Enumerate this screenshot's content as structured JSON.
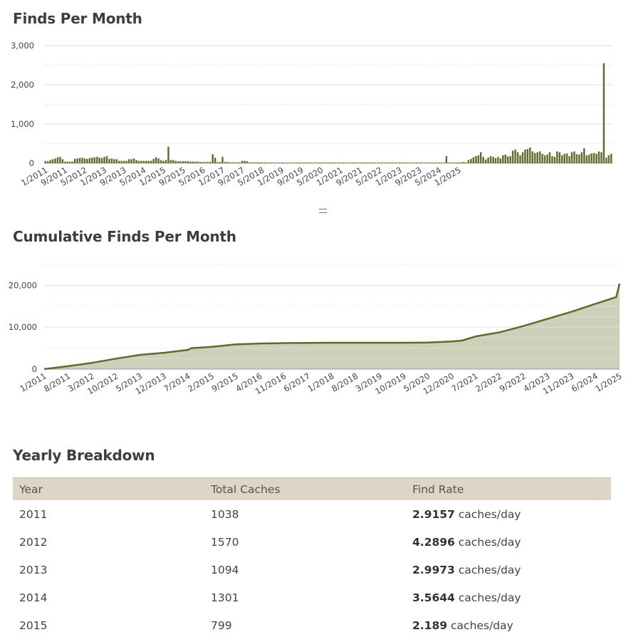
{
  "section_titles": {
    "finds_per_month": "Finds Per Month",
    "cumulative": "Cumulative Finds Per Month",
    "yearly": "Yearly Breakdown"
  },
  "colors": {
    "bar": "#5c6b2a",
    "line": "#5c6b2a",
    "area": "#c9ccb2",
    "grid": "#dddddd",
    "table_header": "#ddd6c7"
  },
  "chart_data": [
    {
      "type": "bar",
      "title": "Finds Per Month",
      "ylim": [
        0,
        3000
      ],
      "yticks": [
        "0",
        "1,000",
        "2,000",
        "3,000"
      ],
      "xticks": [
        "1/2011",
        "9/2011",
        "5/2012",
        "1/2013",
        "9/2013",
        "5/2014",
        "1/2015",
        "9/2015",
        "5/2016",
        "1/2017",
        "9/2017",
        "5/2018",
        "1/2019",
        "9/2019",
        "5/2020",
        "1/2021",
        "9/2021",
        "5/2022",
        "1/2023",
        "9/2023",
        "5/2024",
        "1/2025"
      ],
      "x_start": "1/2011",
      "values": [
        50,
        50,
        80,
        100,
        120,
        150,
        160,
        100,
        40,
        40,
        40,
        40,
        110,
        120,
        130,
        140,
        120,
        110,
        130,
        140,
        150,
        160,
        140,
        130,
        160,
        180,
        110,
        120,
        100,
        100,
        60,
        60,
        60,
        60,
        100,
        100,
        120,
        80,
        60,
        60,
        60,
        60,
        60,
        60,
        110,
        150,
        120,
        80,
        60,
        80,
        420,
        80,
        80,
        60,
        50,
        50,
        50,
        50,
        50,
        40,
        40,
        40,
        40,
        30,
        30,
        30,
        30,
        30,
        230,
        140,
        30,
        30,
        160,
        30,
        30,
        20,
        20,
        20,
        20,
        20,
        60,
        60,
        50,
        20,
        20,
        20,
        20,
        20,
        20,
        20,
        15,
        15,
        15,
        15,
        15,
        15,
        15,
        15,
        15,
        15,
        15,
        15,
        15,
        15,
        15,
        15,
        15,
        15,
        15,
        15,
        15,
        15,
        15,
        15,
        15,
        15,
        15,
        15,
        15,
        15,
        15,
        15,
        15,
        15,
        15,
        15,
        15,
        15,
        15,
        15,
        15,
        15,
        15,
        15,
        15,
        15,
        15,
        15,
        15,
        15,
        15,
        15,
        15,
        15,
        15,
        15,
        15,
        15,
        15,
        15,
        15,
        15,
        15,
        15,
        15,
        15,
        15,
        15,
        15,
        15,
        15,
        15,
        15,
        180,
        15,
        15,
        15,
        15,
        20,
        20,
        30,
        20,
        80,
        110,
        150,
        180,
        200,
        280,
        160,
        90,
        140,
        180,
        160,
        130,
        160,
        120,
        200,
        220,
        170,
        180,
        320,
        350,
        280,
        200,
        280,
        350,
        360,
        400,
        300,
        260,
        280,
        300,
        240,
        200,
        220,
        280,
        180,
        160,
        300,
        280,
        200,
        240,
        250,
        180,
        280,
        300,
        230,
        220,
        280,
        380,
        200,
        220,
        250,
        260,
        240,
        300,
        280,
        2550,
        140,
        200,
        240
      ]
    },
    {
      "type": "area",
      "title": "Cumulative Finds Per Month",
      "ylim": [
        0,
        25000
      ],
      "yticks": [
        "0",
        "10,000",
        "20,000"
      ],
      "xticks": [
        "1/2011",
        "8/2011",
        "3/2012",
        "10/2012",
        "5/2013",
        "12/2013",
        "7/2014",
        "2/2015",
        "9/2015",
        "4/2016",
        "11/2016",
        "6/2017",
        "1/2018",
        "8/2018",
        "3/2019",
        "10/2019",
        "5/2020",
        "12/2020",
        "7/2021",
        "2/2022",
        "9/2022",
        "4/2023",
        "11/2023",
        "6/2024",
        "1/2025"
      ],
      "x": [
        "1/2011",
        "8/2011",
        "3/2012",
        "10/2012",
        "5/2013",
        "12/2013",
        "7/2014",
        "8/2014",
        "2/2015",
        "9/2015",
        "4/2016",
        "11/2016",
        "6/2017",
        "1/2018",
        "8/2018",
        "3/2019",
        "10/2019",
        "5/2020",
        "12/2020",
        "3/2021",
        "7/2021",
        "2/2022",
        "9/2022",
        "4/2023",
        "11/2023",
        "6/2024",
        "12/2024",
        "1/2025"
      ],
      "values": [
        0,
        700,
        1500,
        2500,
        3400,
        3900,
        4600,
        5000,
        5300,
        5900,
        6100,
        6200,
        6250,
        6300,
        6300,
        6300,
        6300,
        6320,
        6600,
        6800,
        7800,
        8800,
        10300,
        12000,
        13700,
        15600,
        17200,
        20400
      ]
    }
  ],
  "table": {
    "headers": [
      "Year",
      "Total Caches",
      "Find Rate"
    ],
    "rows": [
      {
        "year": "2011",
        "total": "1038",
        "rate": "2.9157",
        "unit": "caches/day"
      },
      {
        "year": "2012",
        "total": "1570",
        "rate": "4.2896",
        "unit": "caches/day"
      },
      {
        "year": "2013",
        "total": "1094",
        "rate": "2.9973",
        "unit": "caches/day"
      },
      {
        "year": "2014",
        "total": "1301",
        "rate": "3.5644",
        "unit": "caches/day"
      },
      {
        "year": "2015",
        "total": "799",
        "rate": "2.189",
        "unit": "caches/day"
      }
    ]
  }
}
